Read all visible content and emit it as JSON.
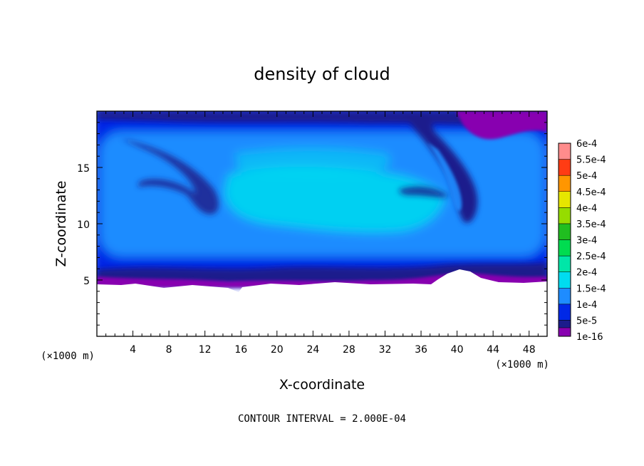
{
  "chart_data": {
    "type": "heatmap",
    "title": "density of cloud",
    "xlabel": "X-coordinate",
    "ylabel": "Z-coordinate",
    "x_unit": "(×1000 m)",
    "x_unit_right": "(×1000 m)",
    "xlim": [
      0,
      50
    ],
    "ylim": [
      0,
      20
    ],
    "xticks": [
      4,
      8,
      12,
      16,
      20,
      24,
      28,
      32,
      36,
      40,
      44,
      48
    ],
    "xtick_labels": [
      "4",
      "8",
      "12",
      "16",
      "20",
      "24",
      "28",
      "32",
      "36",
      "40",
      "44",
      "48"
    ],
    "yticks": [
      5,
      10,
      15
    ],
    "ytick_labels": [
      "5",
      "10",
      "15"
    ],
    "colorbar": {
      "levels": [
        "1e-16",
        "5e-5",
        "1e-4",
        "1.5e-4",
        "2e-4",
        "2.5e-4",
        "3e-4",
        "3.5e-4",
        "4e-4",
        "4.5e-4",
        "5e-4",
        "5.5e-4",
        "6e-4"
      ],
      "colors": [
        "#8800b0",
        "#1c1c8c",
        "#0028e6",
        "#1e8cff",
        "#00dcf0",
        "#00e6a8",
        "#00dc50",
        "#20be20",
        "#96dc00",
        "#e6e600",
        "#ff9600",
        "#ff3c14",
        "#ff8c8c"
      ]
    },
    "cloud_base_z": 5,
    "cloud_top_z": 20,
    "value_range_observed": [
      "1e-16",
      "2e-4"
    ],
    "grid": false,
    "footnote": "CONTOUR INTERVAL = 2.000E-04"
  }
}
